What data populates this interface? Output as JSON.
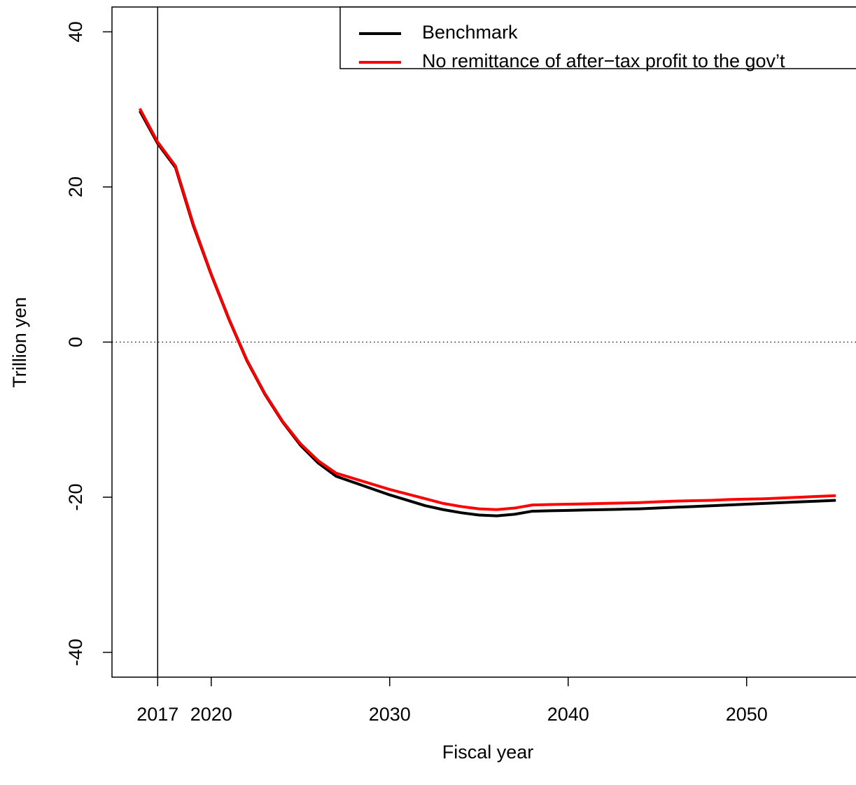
{
  "chart_data": {
    "type": "line",
    "xlabel": "Fiscal year",
    "ylabel": "Trillion yen",
    "x": [
      2016,
      2017,
      2018,
      2019,
      2020,
      2021,
      2022,
      2023,
      2024,
      2025,
      2026,
      2027,
      2028,
      2029,
      2030,
      2031,
      2032,
      2033,
      2034,
      2035,
      2036,
      2037,
      2038,
      2039,
      2040,
      2041,
      2042,
      2043,
      2044,
      2045,
      2046,
      2047,
      2048,
      2049,
      2050,
      2051,
      2052,
      2053,
      2054,
      2055
    ],
    "series": [
      {
        "name": "Benchmark",
        "color": "#000000",
        "values": [
          29.8,
          25.6,
          22.5,
          15.0,
          8.7,
          2.9,
          -2.4,
          -6.7,
          -10.3,
          -13.3,
          -15.6,
          -17.3,
          -18.1,
          -18.9,
          -19.7,
          -20.4,
          -21.1,
          -21.6,
          -22.0,
          -22.3,
          -22.4,
          -22.2,
          -21.8,
          -21.75,
          -21.7,
          -21.65,
          -21.6,
          -21.55,
          -21.5,
          -21.4,
          -21.3,
          -21.2,
          -21.1,
          -21.0,
          -20.9,
          -20.8,
          -20.7,
          -20.6,
          -20.5,
          -20.4
        ]
      },
      {
        "name": "No remittance of after−tax profit to the gov’t",
        "color": "#ff0000",
        "values": [
          30.1,
          25.8,
          22.7,
          15.2,
          8.8,
          3.0,
          -2.3,
          -6.6,
          -10.2,
          -13.1,
          -15.3,
          -16.9,
          -17.6,
          -18.3,
          -19.0,
          -19.6,
          -20.2,
          -20.8,
          -21.2,
          -21.5,
          -21.6,
          -21.4,
          -21.0,
          -20.95,
          -20.9,
          -20.85,
          -20.8,
          -20.75,
          -20.7,
          -20.6,
          -20.5,
          -20.45,
          -20.4,
          -20.3,
          -20.25,
          -20.2,
          -20.1,
          -20.0,
          -19.9,
          -19.8
        ]
      }
    ],
    "xlim": [
      2014.44,
      2056.56
    ],
    "ylim": [
      -43.2,
      43.2
    ],
    "xticks": [
      2017,
      2020,
      2030,
      2040,
      2050
    ],
    "yticks": [
      -40,
      -20,
      0,
      20,
      40
    ],
    "vlines": [
      2017
    ],
    "hlines": [
      0
    ],
    "legend": "top-right"
  }
}
